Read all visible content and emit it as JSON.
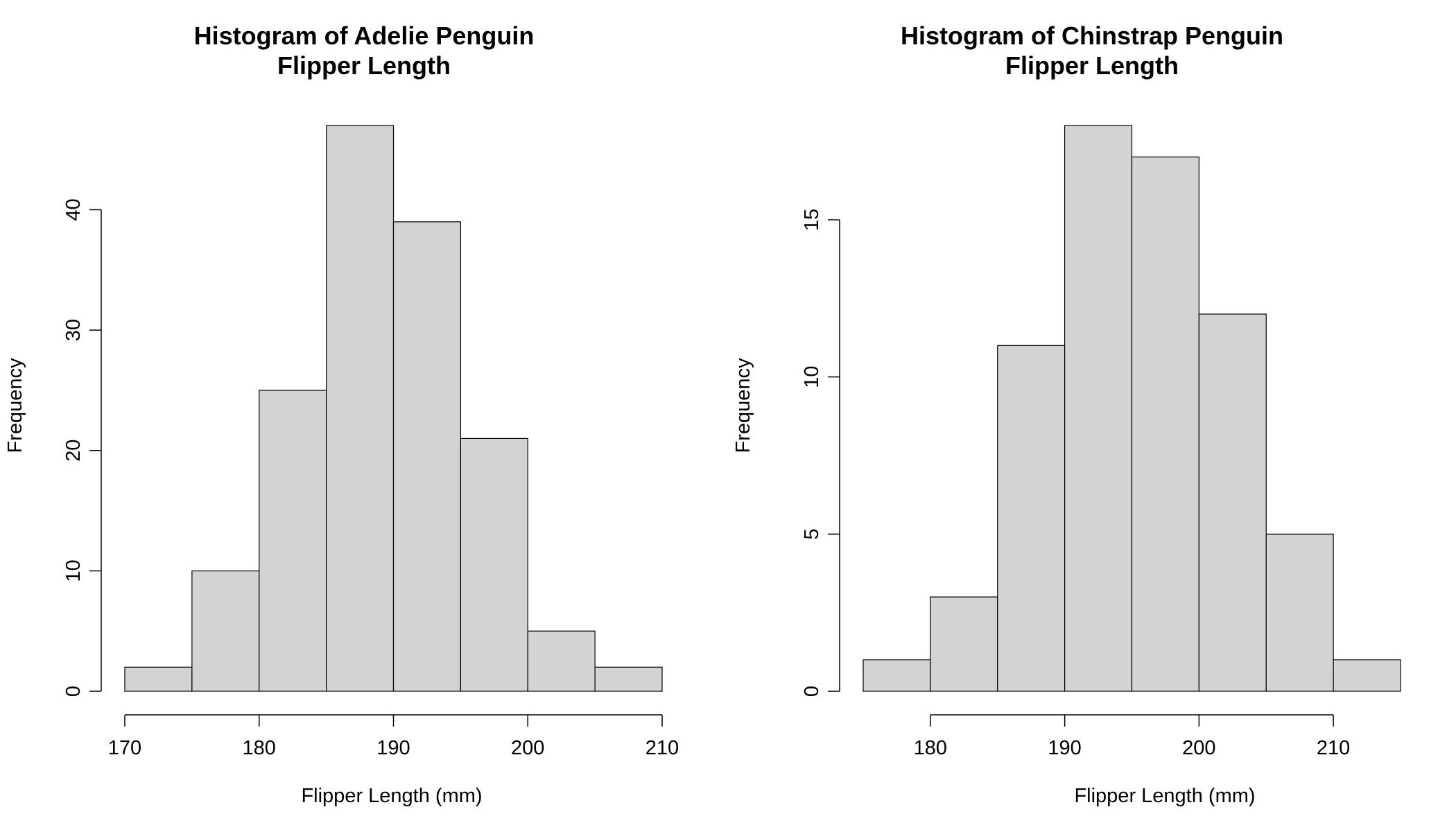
{
  "chart_data": [
    {
      "type": "bar",
      "title_lines": [
        "Histogram of Adelie Penguin",
        "Flipper Length"
      ],
      "xlabel": "Flipper Length (mm)",
      "ylabel": "Frequency",
      "bins": [
        [
          170,
          175
        ],
        [
          175,
          180
        ],
        [
          180,
          185
        ],
        [
          185,
          190
        ],
        [
          190,
          195
        ],
        [
          195,
          200
        ],
        [
          200,
          205
        ],
        [
          205,
          210
        ]
      ],
      "values": [
        2,
        10,
        25,
        47,
        39,
        21,
        5,
        2
      ],
      "xticks": [
        170,
        180,
        190,
        200,
        210
      ],
      "yticks": [
        0,
        10,
        20,
        30,
        40
      ],
      "xlim": [
        170,
        210
      ],
      "ylim": [
        0,
        47
      ],
      "bar_color": "#d3d3d3"
    },
    {
      "type": "bar",
      "title_lines": [
        "Histogram of Chinstrap Penguin",
        "Flipper Length"
      ],
      "xlabel": "Flipper Length (mm)",
      "ylabel": "Frequency",
      "bins": [
        [
          175,
          180
        ],
        [
          180,
          185
        ],
        [
          185,
          190
        ],
        [
          190,
          195
        ],
        [
          195,
          200
        ],
        [
          200,
          205
        ],
        [
          205,
          210
        ],
        [
          210,
          215
        ]
      ],
      "values": [
        1,
        3,
        11,
        18,
        17,
        12,
        5,
        1
      ],
      "xticks": [
        180,
        190,
        200,
        210
      ],
      "yticks": [
        0,
        5,
        10,
        15
      ],
      "xlim": [
        175,
        215
      ],
      "ylim": [
        0,
        18
      ],
      "bar_color": "#d3d3d3"
    }
  ]
}
